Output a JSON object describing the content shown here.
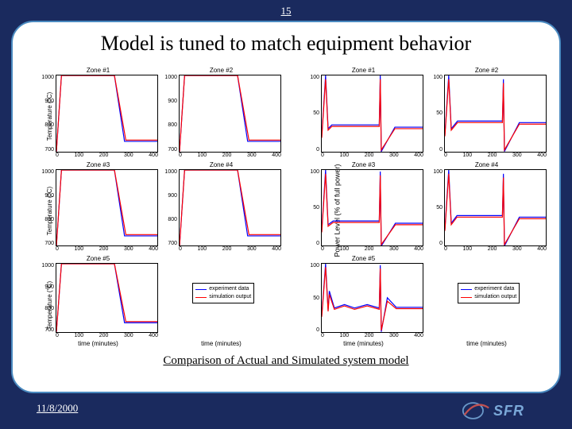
{
  "slide_number": "15",
  "title": "Model is tuned to match equipment behavior",
  "caption": "Comparison of Actual and Simulated system model",
  "footer_date": "11/8/2000",
  "logo_text": "SFR",
  "colors": {
    "slide_bg": "#1a2a5e",
    "frame_border": "#4a8ac0",
    "panel_bg": "#ffffff",
    "text": "#000000",
    "experiment": "#0000ff",
    "simulation": "#ff0000",
    "axis": "#000000"
  },
  "legend": {
    "items": [
      {
        "label": "experiment data",
        "color": "#0000ff"
      },
      {
        "label": "simulation output",
        "color": "#ff0000"
      }
    ]
  },
  "temperature_group": {
    "ylabel_segments": [
      "Temperature (°C)",
      "Temperature (°C)",
      "Temperature (°C)"
    ],
    "x_ticks": [
      0,
      100,
      200,
      300,
      400
    ],
    "y_ticks": [
      700,
      800,
      900,
      1000
    ],
    "xlabel": "time (minutes)",
    "subplots": [
      {
        "title": "Zone #1",
        "exp": [
          [
            0,
            700
          ],
          [
            20,
            1000
          ],
          [
            230,
            1000
          ],
          [
            270,
            740
          ],
          [
            400,
            740
          ]
        ],
        "sim": [
          [
            0,
            700
          ],
          [
            20,
            1000
          ],
          [
            230,
            1000
          ],
          [
            275,
            745
          ],
          [
            400,
            745
          ]
        ]
      },
      {
        "title": "Zone #2",
        "exp": [
          [
            0,
            700
          ],
          [
            20,
            1000
          ],
          [
            230,
            1000
          ],
          [
            270,
            740
          ],
          [
            400,
            740
          ]
        ],
        "sim": [
          [
            0,
            700
          ],
          [
            20,
            1000
          ],
          [
            230,
            1000
          ],
          [
            275,
            745
          ],
          [
            400,
            745
          ]
        ]
      },
      {
        "title": "Zone #3",
        "exp": [
          [
            0,
            700
          ],
          [
            20,
            1000
          ],
          [
            230,
            1000
          ],
          [
            270,
            740
          ],
          [
            400,
            740
          ]
        ],
        "sim": [
          [
            0,
            700
          ],
          [
            20,
            1000
          ],
          [
            230,
            1000
          ],
          [
            275,
            745
          ],
          [
            400,
            745
          ]
        ]
      },
      {
        "title": "Zone #4",
        "exp": [
          [
            0,
            700
          ],
          [
            20,
            1000
          ],
          [
            230,
            1000
          ],
          [
            270,
            740
          ],
          [
            400,
            740
          ]
        ],
        "sim": [
          [
            0,
            700
          ],
          [
            20,
            1000
          ],
          [
            230,
            1000
          ],
          [
            275,
            745
          ],
          [
            400,
            745
          ]
        ]
      },
      {
        "title": "Zone #5",
        "exp": [
          [
            0,
            700
          ],
          [
            20,
            1000
          ],
          [
            230,
            1000
          ],
          [
            270,
            740
          ],
          [
            400,
            740
          ]
        ],
        "sim": [
          [
            0,
            700
          ],
          [
            20,
            1000
          ],
          [
            230,
            1000
          ],
          [
            275,
            745
          ],
          [
            400,
            745
          ]
        ]
      },
      {
        "legend_slot": true
      }
    ]
  },
  "power_group": {
    "ylabel": "Power Level (% of full power)",
    "x_ticks": [
      0,
      100,
      200,
      300,
      400
    ],
    "y_ticks": [
      0,
      50,
      100
    ],
    "xlabel": "time (minutes)",
    "subplots": [
      {
        "title": "Zone #1",
        "exp": [
          [
            0,
            20
          ],
          [
            15,
            100
          ],
          [
            25,
            30
          ],
          [
            40,
            35
          ],
          [
            100,
            35
          ],
          [
            228,
            35
          ],
          [
            232,
            100
          ],
          [
            236,
            0
          ],
          [
            290,
            32
          ],
          [
            400,
            32
          ]
        ],
        "sim": [
          [
            0,
            18
          ],
          [
            15,
            95
          ],
          [
            25,
            28
          ],
          [
            40,
            33
          ],
          [
            100,
            33
          ],
          [
            228,
            33
          ],
          [
            232,
            95
          ],
          [
            236,
            2
          ],
          [
            290,
            30
          ],
          [
            400,
            30
          ]
        ]
      },
      {
        "title": "Zone #2",
        "exp": [
          [
            0,
            22
          ],
          [
            15,
            100
          ],
          [
            25,
            30
          ],
          [
            50,
            40
          ],
          [
            228,
            40
          ],
          [
            232,
            95
          ],
          [
            236,
            0
          ],
          [
            295,
            38
          ],
          [
            400,
            38
          ]
        ],
        "sim": [
          [
            0,
            20
          ],
          [
            15,
            95
          ],
          [
            25,
            28
          ],
          [
            50,
            38
          ],
          [
            228,
            38
          ],
          [
            232,
            90
          ],
          [
            236,
            2
          ],
          [
            295,
            36
          ],
          [
            400,
            36
          ]
        ]
      },
      {
        "title": "Zone #3",
        "exp": [
          [
            0,
            20
          ],
          [
            15,
            100
          ],
          [
            25,
            28
          ],
          [
            45,
            33
          ],
          [
            228,
            33
          ],
          [
            232,
            98
          ],
          [
            236,
            0
          ],
          [
            292,
            30
          ],
          [
            400,
            30
          ]
        ],
        "sim": [
          [
            0,
            18
          ],
          [
            15,
            95
          ],
          [
            25,
            26
          ],
          [
            45,
            31
          ],
          [
            228,
            31
          ],
          [
            232,
            93
          ],
          [
            236,
            2
          ],
          [
            292,
            28
          ],
          [
            400,
            28
          ]
        ]
      },
      {
        "title": "Zone #4",
        "exp": [
          [
            0,
            22
          ],
          [
            15,
            100
          ],
          [
            25,
            30
          ],
          [
            48,
            40
          ],
          [
            228,
            40
          ],
          [
            232,
            95
          ],
          [
            236,
            0
          ],
          [
            295,
            38
          ],
          [
            400,
            38
          ]
        ],
        "sim": [
          [
            0,
            20
          ],
          [
            15,
            95
          ],
          [
            25,
            28
          ],
          [
            48,
            38
          ],
          [
            228,
            38
          ],
          [
            232,
            90
          ],
          [
            236,
            2
          ],
          [
            295,
            36
          ],
          [
            400,
            36
          ]
        ]
      },
      {
        "title": "Zone #5",
        "exp": [
          [
            0,
            24
          ],
          [
            15,
            100
          ],
          [
            25,
            32
          ],
          [
            30,
            60
          ],
          [
            50,
            35
          ],
          [
            90,
            40
          ],
          [
            130,
            35
          ],
          [
            180,
            40
          ],
          [
            228,
            35
          ],
          [
            232,
            98
          ],
          [
            236,
            0
          ],
          [
            260,
            50
          ],
          [
            295,
            36
          ],
          [
            400,
            36
          ]
        ],
        "sim": [
          [
            0,
            22
          ],
          [
            15,
            95
          ],
          [
            25,
            30
          ],
          [
            30,
            55
          ],
          [
            50,
            33
          ],
          [
            90,
            38
          ],
          [
            130,
            33
          ],
          [
            180,
            38
          ],
          [
            228,
            33
          ],
          [
            232,
            93
          ],
          [
            236,
            2
          ],
          [
            260,
            45
          ],
          [
            295,
            34
          ],
          [
            400,
            34
          ]
        ]
      },
      {
        "legend_slot": true
      }
    ]
  }
}
